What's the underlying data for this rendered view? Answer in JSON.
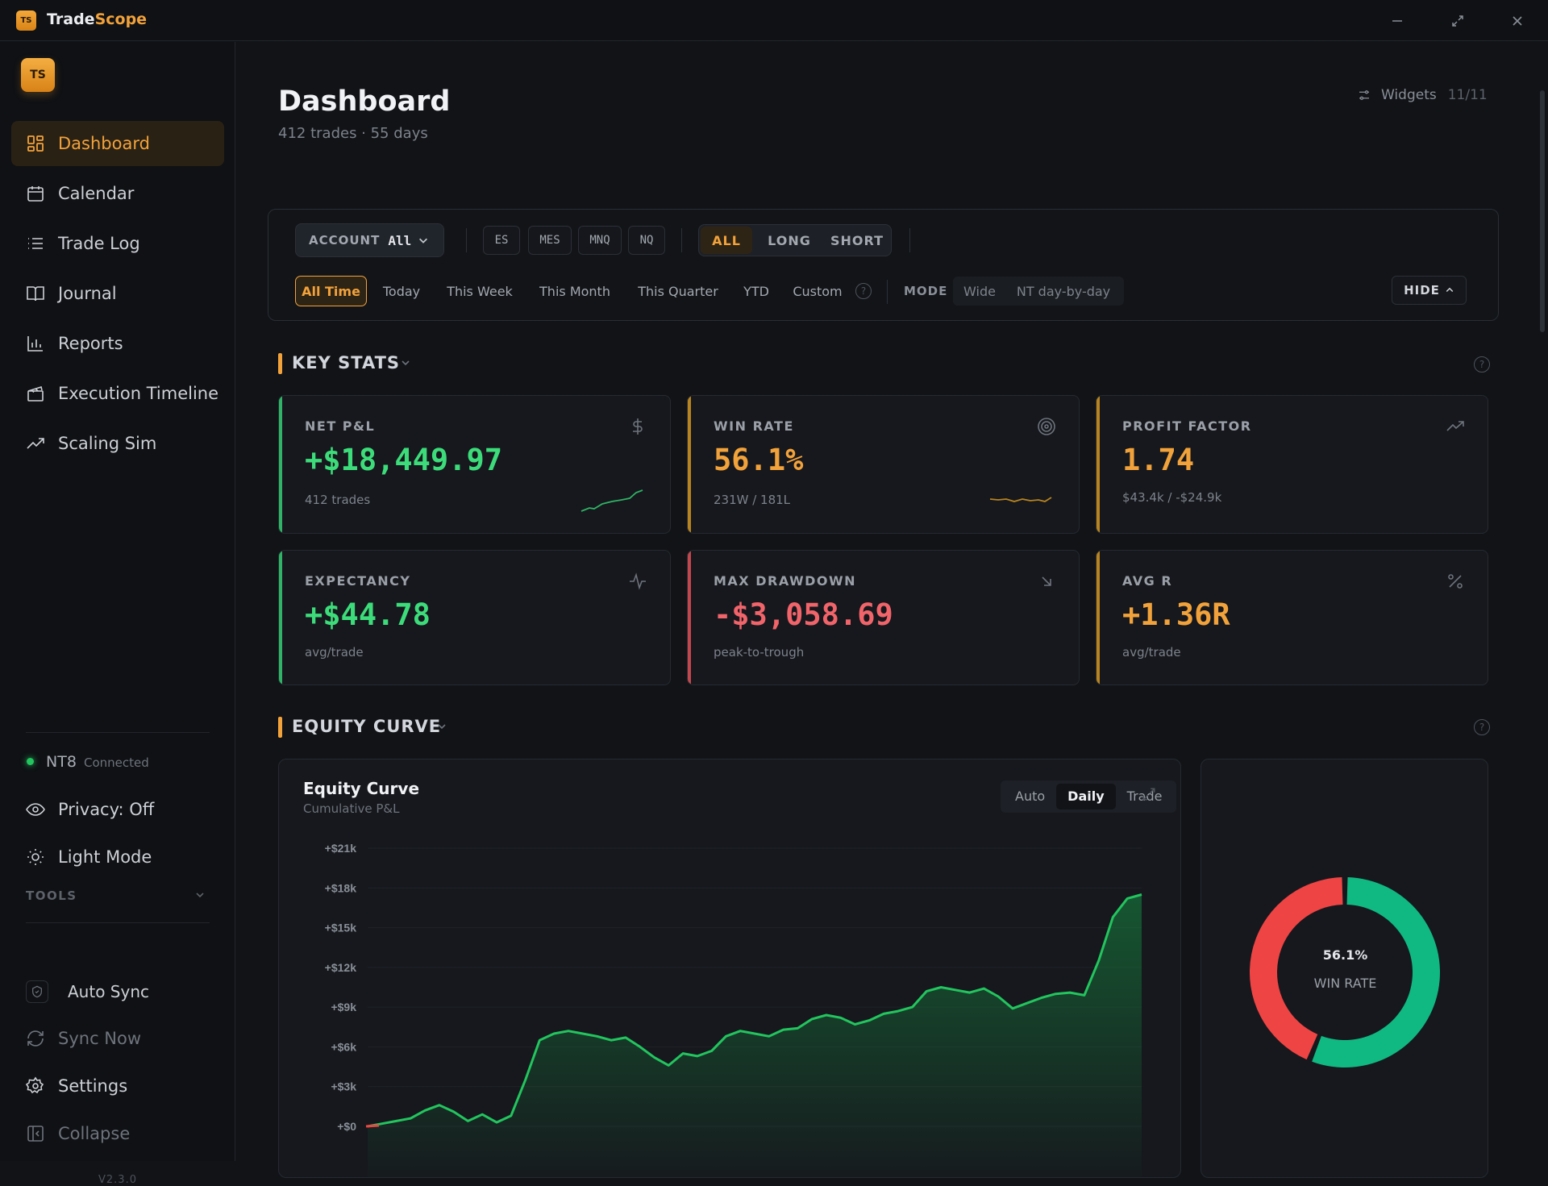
{
  "app": {
    "logo_text": "TS",
    "name_part1": "Trade",
    "name_part2": "Scope"
  },
  "sidebar": {
    "logo_text": "TS",
    "nav": [
      {
        "label": "Dashboard",
        "icon": "grid-icon",
        "active": true
      },
      {
        "label": "Calendar",
        "icon": "calendar-icon"
      },
      {
        "label": "Trade Log",
        "icon": "list-icon"
      },
      {
        "label": "Journal",
        "icon": "book-icon"
      },
      {
        "label": "Reports",
        "icon": "bar-chart-icon"
      },
      {
        "label": "Execution Timeline",
        "icon": "clapper-icon"
      },
      {
        "label": "Scaling Sim",
        "icon": "trend-icon"
      }
    ],
    "status": {
      "name": "NT8",
      "text": "Connected",
      "color": "#22c55e"
    },
    "privacy_label": "Privacy: Off",
    "light_mode_label": "Light Mode",
    "tools_label": "TOOLS",
    "auto_sync_label": "Auto Sync",
    "sync_now_label": "Sync Now",
    "settings_label": "Settings",
    "collapse_label": "Collapse",
    "version": "V2.3.0"
  },
  "header": {
    "title": "Dashboard",
    "subtitle": "412 trades · 55 days",
    "widgets_label": "Widgets",
    "widgets_count": "11/11"
  },
  "filters": {
    "account_label": "ACCOUNT",
    "account_value": "All",
    "symbols": [
      "ES",
      "MES",
      "MNQ",
      "NQ"
    ],
    "directions": [
      "ALL",
      "LONG",
      "SHORT"
    ],
    "direction_selected": "ALL",
    "times": [
      "All Time",
      "Today",
      "This Week",
      "This Month",
      "This Quarter",
      "YTD",
      "Custom"
    ],
    "time_selected": "All Time",
    "mode_label": "MODE",
    "modes": [
      "Wide",
      "NT day-by-day"
    ],
    "hide_label": "HIDE"
  },
  "key_stats": {
    "title": "KEY STATS",
    "cards": [
      {
        "label": "NET P&L",
        "value": "+$18,449.97",
        "sub": "412 trades",
        "color": "#3ddc7a",
        "icon": "dollar-icon"
      },
      {
        "label": "WIN RATE",
        "value": "56.1%",
        "sub": "231W / 181L",
        "color": "#f2a23a",
        "icon": "target-icon"
      },
      {
        "label": "PROFIT FACTOR",
        "value": "1.74",
        "sub": "$43.4k / -$24.9k",
        "color": "#f2a23a",
        "icon": "trend-up-icon"
      },
      {
        "label": "EXPECTANCY",
        "value": "+$44.78",
        "sub": "avg/trade",
        "color": "#3ddc7a",
        "icon": "pulse-icon"
      },
      {
        "label": "MAX DRAWDOWN",
        "value": "-$3,058.69",
        "sub": "peak-to-trough",
        "color": "#f0646a",
        "icon": "arrow-down-right-icon"
      },
      {
        "label": "AVG R",
        "value": "+1.36R",
        "sub": "avg/trade",
        "color": "#f2a23a",
        "icon": "percent-icon"
      }
    ]
  },
  "equity": {
    "section_title": "EQUITY CURVE",
    "title": "Equity Curve",
    "subtitle": "Cumulative P&L",
    "modes": [
      "Auto",
      "Daily",
      "Trade"
    ],
    "mode_selected": "Daily"
  },
  "donut": {
    "value": "56.1%",
    "label": "WIN RATE",
    "win_fraction": 0.561,
    "win_color": "#10b981",
    "loss_color": "#ef4444"
  },
  "chart_data": [
    {
      "type": "area",
      "title": "Equity Curve",
      "subtitle": "Cumulative P&L",
      "y_ticks": [
        "+$21k",
        "+$18k",
        "+$15k",
        "+$12k",
        "+$9k",
        "+$6k",
        "+$3k",
        "+$0"
      ],
      "ylim": [
        -1500,
        22000
      ],
      "x": [
        1,
        2,
        3,
        4,
        5,
        6,
        7,
        8,
        9,
        10,
        11,
        12,
        13,
        14,
        15,
        16,
        17,
        18,
        19,
        20,
        21,
        22,
        23,
        24,
        25,
        26,
        27,
        28,
        29,
        30,
        31,
        32,
        33,
        34,
        35,
        36,
        37,
        38,
        39,
        40,
        41,
        42,
        43,
        44,
        45,
        46,
        47,
        48,
        49,
        50,
        51,
        52,
        53,
        54,
        55
      ],
      "values": [
        0,
        200,
        400,
        600,
        1200,
        1600,
        1100,
        400,
        900,
        300,
        800,
        3500,
        6500,
        7000,
        7200,
        7000,
        6800,
        6500,
        6700,
        6000,
        5200,
        4600,
        5500,
        5300,
        5700,
        6800,
        7200,
        7000,
        6800,
        7300,
        7400,
        8100,
        8400,
        8200,
        7700,
        8000,
        8500,
        8700,
        9000,
        10200,
        10500,
        10300,
        10100,
        10400,
        9800,
        8900,
        9300,
        9700,
        10000,
        10100,
        9900,
        12500,
        15800,
        17200,
        17500
      ],
      "color": "#22c55e",
      "negative_color": "#ef4444"
    },
    {
      "type": "pie",
      "title": "",
      "categories": [
        "Wins",
        "Losses"
      ],
      "values": [
        231,
        181
      ],
      "center_text": "56.1%",
      "center_label": "WIN RATE"
    }
  ]
}
